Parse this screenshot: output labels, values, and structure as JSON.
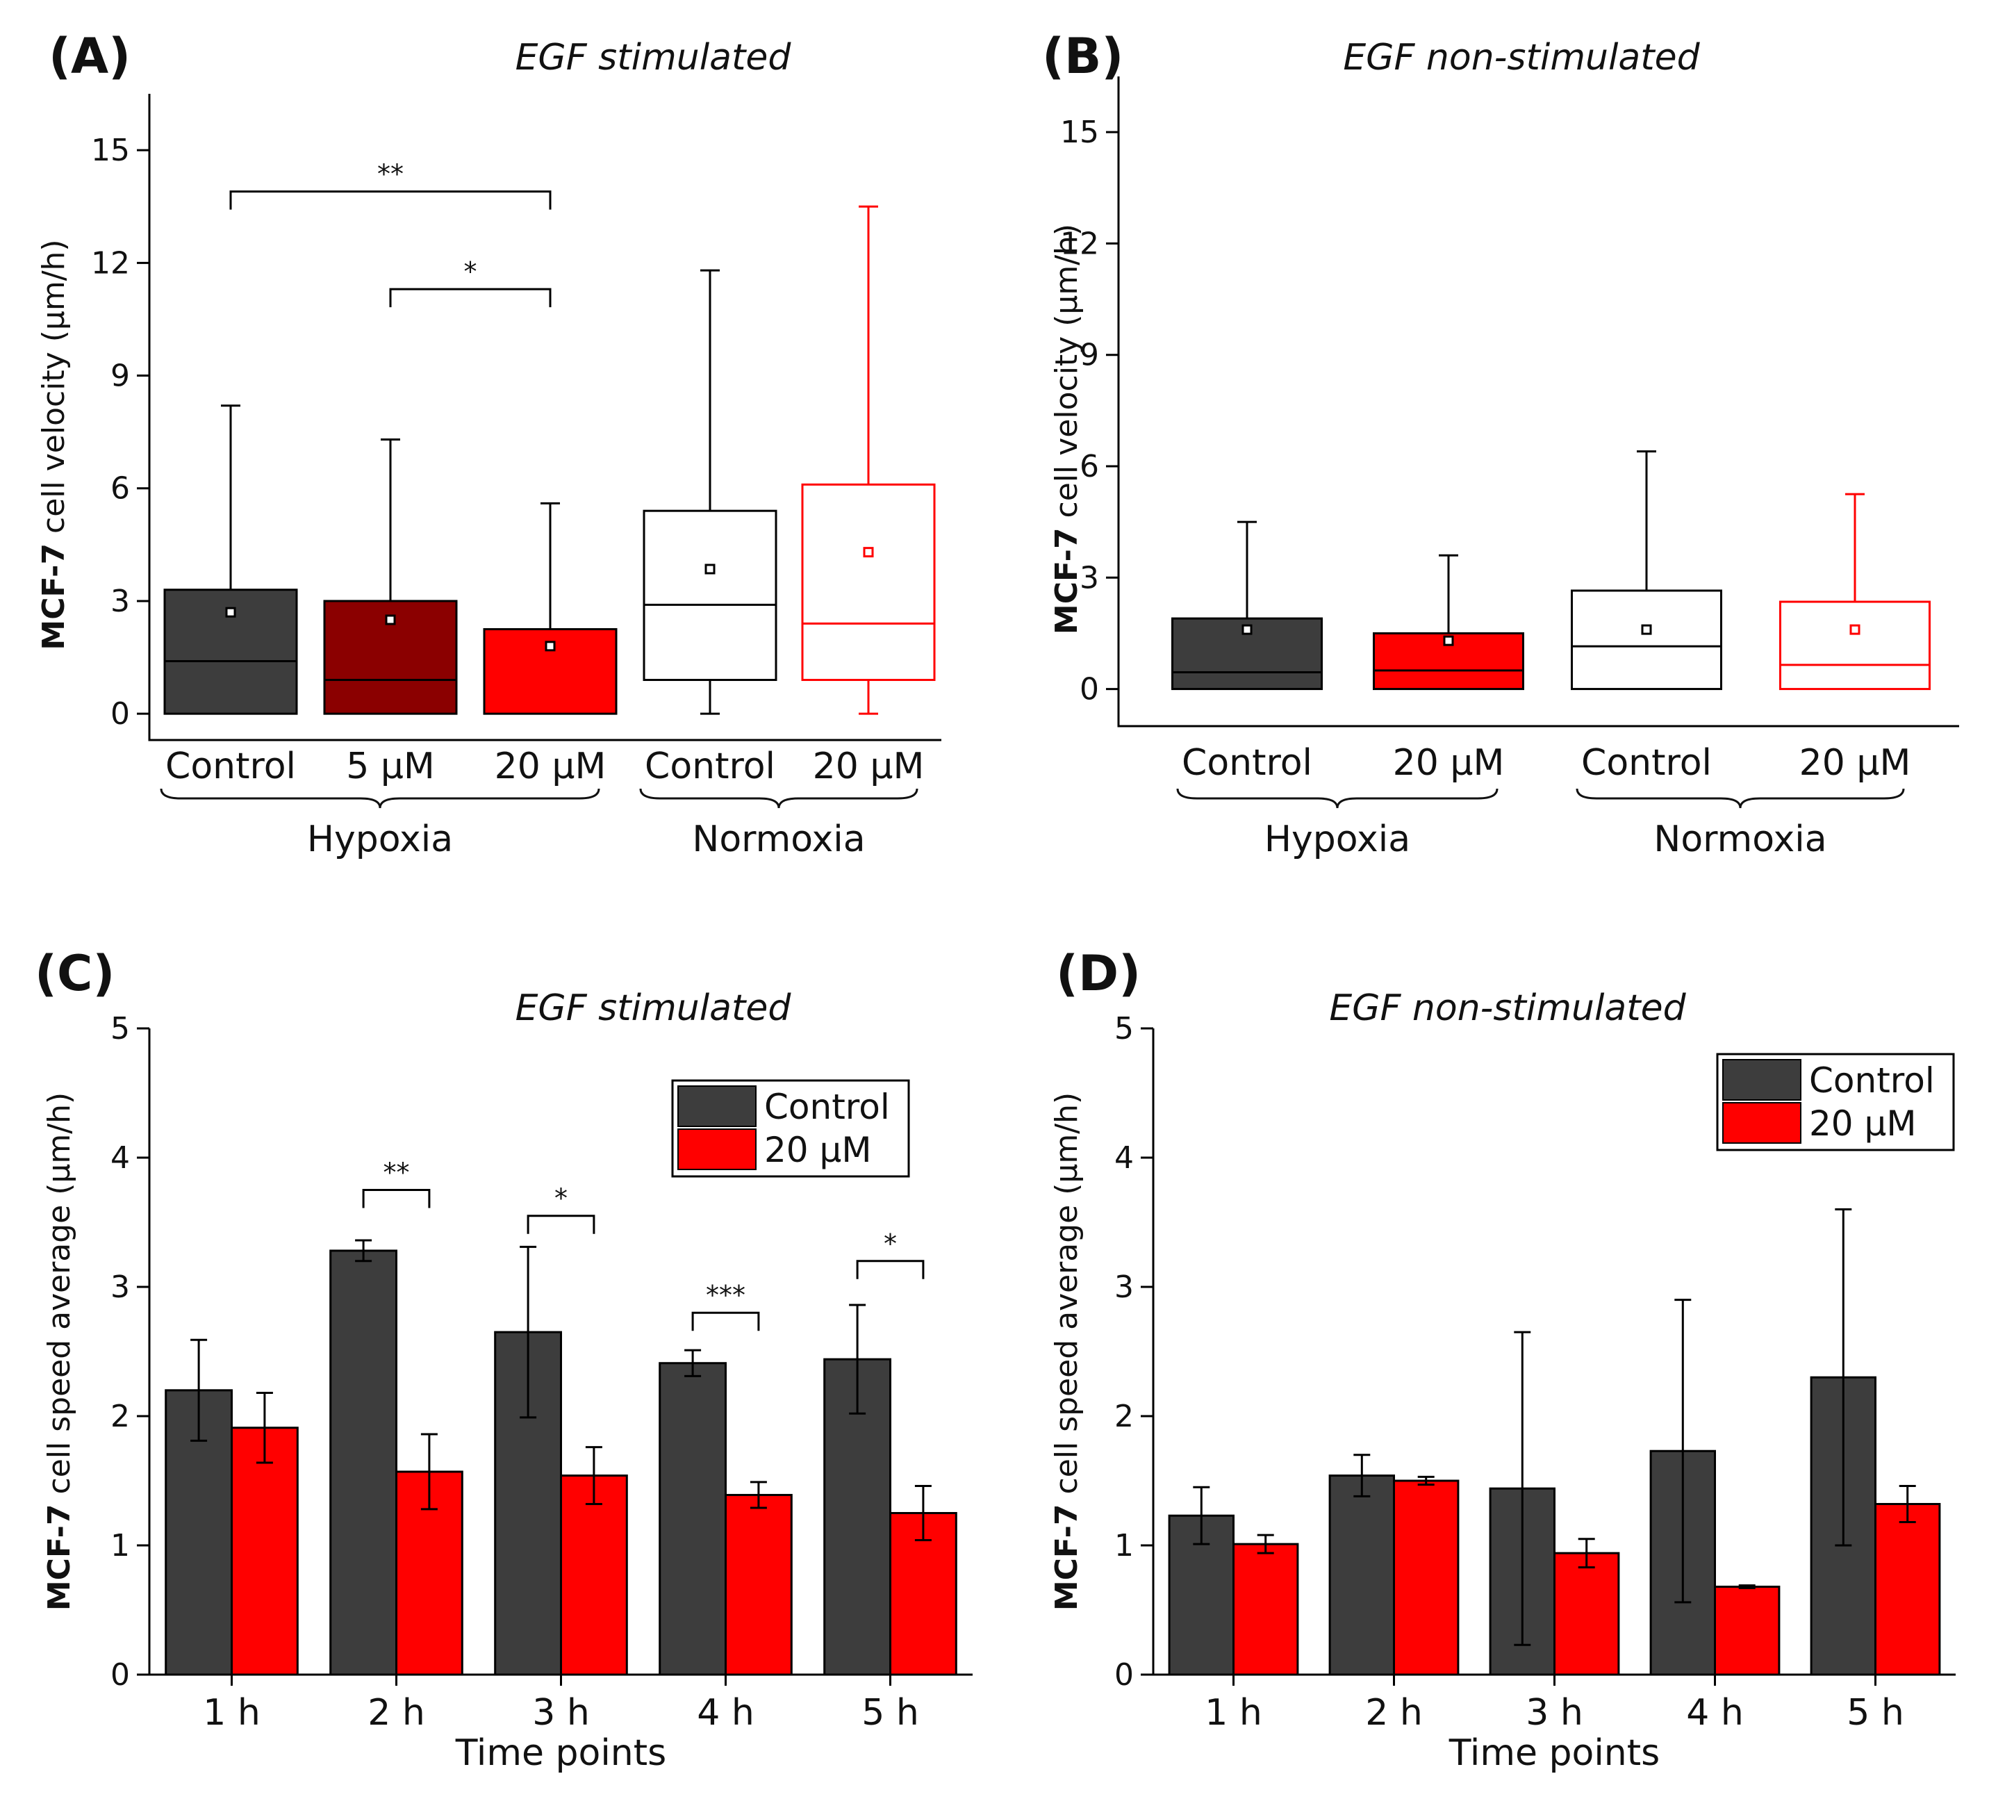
{
  "figure": {
    "panels": [
      {
        "label": "(A)",
        "title": "EGF stimulated"
      },
      {
        "label": "(B)",
        "title": "EGF non-stimulated"
      },
      {
        "label": "(C)",
        "title": "EGF stimulated"
      },
      {
        "label": "(D)",
        "title": "EGF non-stimulated"
      }
    ]
  },
  "chart_data": [
    {
      "id": "A",
      "type": "box",
      "title": "EGF stimulated",
      "ylabel_bold": "MCF-7",
      "ylabel_rest": " cell velocity  (μm/h)",
      "ylim": [
        -0.7,
        16.5
      ],
      "yticks": [
        0,
        3,
        6,
        9,
        12,
        15
      ],
      "categories": [
        "Control",
        "5 μM",
        "20 μM",
        "Control",
        "20 μM"
      ],
      "groups": [
        {
          "label": "Hypoxia",
          "members": [
            0,
            1,
            2
          ]
        },
        {
          "label": "Normoxia",
          "members": [
            3,
            4
          ]
        }
      ],
      "boxes": [
        {
          "min": 0,
          "q1": 0,
          "median": 1.4,
          "q3": 3.3,
          "max": 8.2,
          "mean": 2.7,
          "fill": "#3d3d3d",
          "stroke": "#000000"
        },
        {
          "min": 0,
          "q1": 0,
          "median": 0.9,
          "q3": 3.0,
          "max": 7.3,
          "mean": 2.5,
          "fill": "#8b0000",
          "stroke": "#000000"
        },
        {
          "min": 0,
          "q1": 0,
          "median": null,
          "q3": 2.25,
          "max": 5.6,
          "mean": 1.8,
          "fill": "#ff0000",
          "stroke": "#000000"
        },
        {
          "min": 0,
          "q1": 0.9,
          "median": 2.9,
          "q3": 5.4,
          "max": 11.8,
          "mean": 3.85,
          "fill": "#ffffff",
          "stroke": "#000000"
        },
        {
          "min": 0,
          "q1": 0.9,
          "median": 2.4,
          "q3": 6.1,
          "max": 13.5,
          "mean": 4.3,
          "fill": "#ffffff",
          "stroke": "#ff0000"
        }
      ],
      "significance": [
        {
          "from": 0,
          "to": 2,
          "label": "**",
          "level": 13.9
        },
        {
          "from": 1,
          "to": 2,
          "label": "*",
          "level": 11.3
        }
      ]
    },
    {
      "id": "B",
      "type": "box",
      "title": "EGF non-stimulated",
      "ylabel_bold": "MCF-7",
      "ylabel_rest": " cell velocity (μm/h)",
      "ylim": [
        -1.0,
        16.5
      ],
      "yticks": [
        0,
        3,
        6,
        9,
        12,
        15
      ],
      "categories": [
        "Control",
        "20 μM",
        "Control",
        "20 μM"
      ],
      "groups": [
        {
          "label": "Hypoxia",
          "members": [
            0,
            1
          ]
        },
        {
          "label": "Normoxia",
          "members": [
            2,
            3
          ]
        }
      ],
      "boxes": [
        {
          "min": 0,
          "q1": 0,
          "median": 0.45,
          "q3": 1.9,
          "max": 4.5,
          "mean": 1.6,
          "fill": "#3d3d3d",
          "stroke": "#000000"
        },
        {
          "min": 0,
          "q1": 0,
          "median": 0.5,
          "q3": 1.5,
          "max": 3.6,
          "mean": 1.3,
          "fill": "#ff0000",
          "stroke": "#000000"
        },
        {
          "min": 0,
          "q1": 0,
          "median": 1.15,
          "q3": 2.65,
          "max": 6.4,
          "mean": 1.6,
          "fill": "#ffffff",
          "stroke": "#000000"
        },
        {
          "min": 0,
          "q1": 0,
          "median": 0.65,
          "q3": 2.35,
          "max": 5.25,
          "mean": 1.6,
          "fill": "#ffffff",
          "stroke": "#ff0000"
        }
      ],
      "significance": []
    },
    {
      "id": "C",
      "type": "bar",
      "title": "EGF stimulated",
      "ylabel_bold": "MCF-7",
      "ylabel_rest": " cell speed average (μm/h)",
      "xlabel": "Time points",
      "ylim": [
        0,
        5
      ],
      "yticks": [
        0,
        1,
        2,
        3,
        4,
        5
      ],
      "categories": [
        "1 h",
        "2 h",
        "3 h",
        "4 h",
        "5 h"
      ],
      "series": [
        {
          "name": "Control",
          "color": "#3d3d3d",
          "values": [
            2.2,
            3.28,
            2.65,
            2.41,
            2.44
          ],
          "errors": [
            0.39,
            0.08,
            0.66,
            0.1,
            0.42
          ]
        },
        {
          "name": "20 μM",
          "color": "#ff0000",
          "values": [
            1.91,
            1.57,
            1.54,
            1.39,
            1.25
          ],
          "errors": [
            0.27,
            0.29,
            0.22,
            0.1,
            0.21
          ]
        }
      ],
      "significance": [
        {
          "category": 1,
          "label": "**",
          "level": 3.75
        },
        {
          "category": 2,
          "label": "*",
          "level": 3.55
        },
        {
          "category": 3,
          "label": "***",
          "level": 2.8
        },
        {
          "category": 4,
          "label": "*",
          "level": 3.2
        }
      ],
      "legend": "top-right"
    },
    {
      "id": "D",
      "type": "bar",
      "title": "EGF non-stimulated",
      "ylabel_bold": "MCF-7",
      "ylabel_rest": " cell speed average (μm/h)",
      "xlabel": "Time points",
      "ylim": [
        0,
        5
      ],
      "yticks": [
        0,
        1,
        2,
        3,
        4,
        5
      ],
      "categories": [
        "1 h",
        "2 h",
        "3 h",
        "4 h",
        "5 h"
      ],
      "series": [
        {
          "name": "Control",
          "color": "#3d3d3d",
          "values": [
            1.23,
            1.54,
            1.44,
            1.73,
            2.3
          ],
          "errors": [
            0.22,
            0.16,
            1.21,
            1.17,
            1.3
          ]
        },
        {
          "name": "20 μM",
          "color": "#ff0000",
          "values": [
            1.01,
            1.5,
            0.94,
            0.68,
            1.32
          ],
          "errors": [
            0.07,
            0.03,
            0.11,
            0.01,
            0.14
          ]
        }
      ],
      "significance": [],
      "legend": "top-right"
    }
  ]
}
